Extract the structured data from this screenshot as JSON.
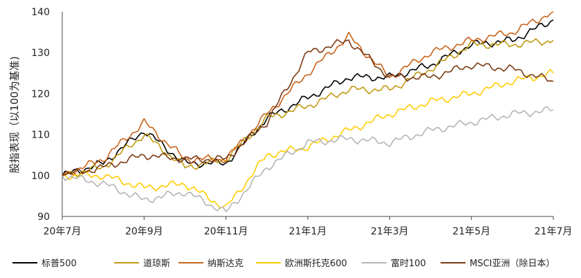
{
  "chart_data": {
    "type": "line",
    "title": "",
    "xlabel": "",
    "ylabel": "股指表现（以100为基准)",
    "ylim": [
      90,
      140
    ],
    "yticks": [
      90,
      100,
      110,
      120,
      130,
      140
    ],
    "grid": false,
    "legend_position": "bottom",
    "x_tick_labels": [
      "20年7月",
      "20年9月",
      "20年11月",
      "21年1月",
      "21年3月",
      "21年5月",
      "21年7月"
    ],
    "x_tick_index": [
      0,
      2,
      4,
      6,
      8,
      10,
      12
    ],
    "x": [
      "2020-07",
      "2020-08",
      "2020-09",
      "2020-10",
      "2020-11",
      "2020-12",
      "2021-01",
      "2021-02",
      "2021-03",
      "2021-04",
      "2021-05",
      "2021-06",
      "2021-07"
    ],
    "series": [
      {
        "name": "标普500",
        "color": "#000000",
        "values": [
          100,
          103,
          111,
          103,
          103,
          114,
          119,
          124,
          124,
          127,
          132,
          133,
          138
        ]
      },
      {
        "name": "道琼斯",
        "color": "#C0990F",
        "values": [
          100,
          102,
          110,
          102,
          104,
          114,
          117,
          121,
          121,
          126,
          132,
          132,
          133
        ]
      },
      {
        "name": "纳斯达克",
        "color": "#C8621A",
        "values": [
          100,
          104,
          113,
          104,
          104,
          115,
          125,
          134,
          124,
          130,
          133,
          135,
          140
        ]
      },
      {
        "name": "欧洲斯托克600",
        "color": "#FFCC00",
        "values": [
          100,
          100,
          97,
          98,
          92,
          105,
          107,
          111,
          115,
          118,
          120,
          123,
          125
        ]
      },
      {
        "name": "富时100",
        "color": "#B4B4B4",
        "values": [
          100,
          98,
          94,
          96,
          91,
          102,
          108,
          109,
          108,
          111,
          113,
          115,
          116
        ]
      },
      {
        "name": "MSCI亚洲（除日本）",
        "color": "#7B3A12",
        "values": [
          100,
          102,
          105,
          104,
          104,
          113,
          130,
          133,
          124,
          124,
          127,
          126,
          123
        ]
      }
    ]
  }
}
